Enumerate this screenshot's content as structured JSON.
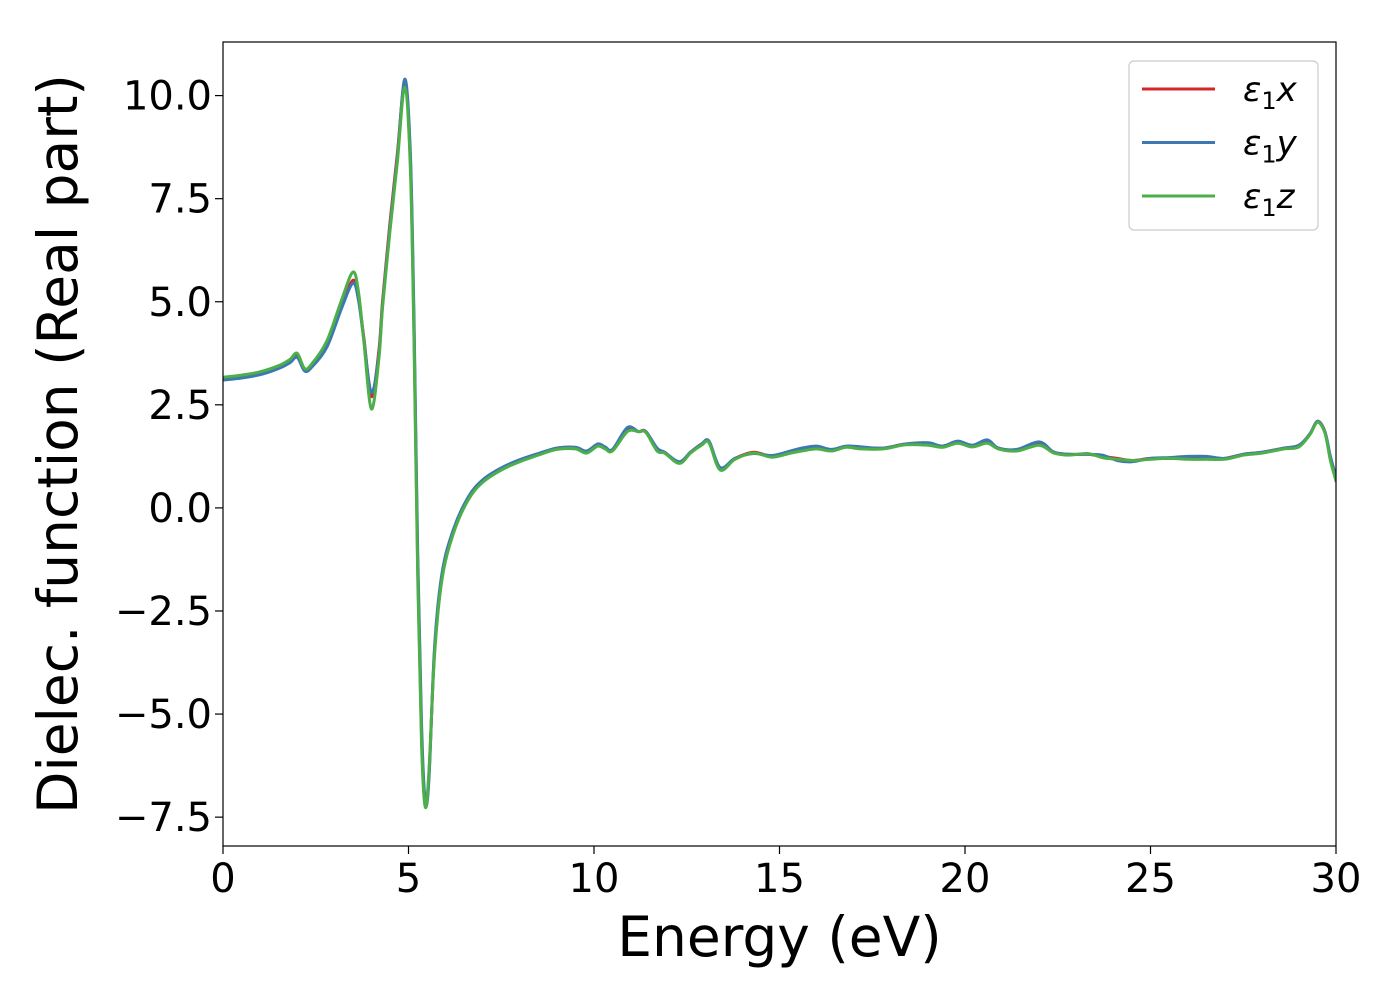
{
  "chart_data": {
    "type": "line",
    "title": "",
    "xlabel": "Energy (eV)",
    "ylabel": "Dielec. function (Real part)",
    "xlim": [
      0,
      30
    ],
    "ylim": [
      -8.2,
      11.3
    ],
    "x_ticks": [
      0,
      5,
      10,
      15,
      20,
      25,
      30
    ],
    "x_tick_labels": [
      "0",
      "5",
      "10",
      "15",
      "20",
      "25",
      "30"
    ],
    "y_ticks": [
      -7.5,
      -5.0,
      -2.5,
      0.0,
      2.5,
      5.0,
      7.5,
      10.0
    ],
    "y_tick_labels": [
      "−7.5",
      "−5.0",
      "−2.5",
      "0.0",
      "2.5",
      "5.0",
      "7.5",
      "10.0"
    ],
    "grid": false,
    "legend_position": "top-right",
    "series": [
      {
        "name": "ε₁x",
        "legend_base": "ε",
        "legend_sub": "1",
        "legend_var": "x",
        "color": "#d62728",
        "x": [
          0,
          0.5,
          1.0,
          1.5,
          1.8,
          2.0,
          2.2,
          2.4,
          2.8,
          3.2,
          3.5,
          3.65,
          3.8,
          4.0,
          4.2,
          4.3,
          4.5,
          4.7,
          4.9,
          5.05,
          5.15,
          5.25,
          5.35,
          5.45,
          5.55,
          5.7,
          5.9,
          6.2,
          6.6,
          7.0,
          7.5,
          8.0,
          8.5,
          9.0,
          9.5,
          9.8,
          10.1,
          10.3,
          10.5,
          10.9,
          11.2,
          11.4,
          11.7,
          11.9,
          12.3,
          12.6,
          12.9,
          13.1,
          13.4,
          13.8,
          14.3,
          14.8,
          15.3,
          15.6,
          16.0,
          16.4,
          16.8,
          17.2,
          17.8,
          18.4,
          19.0,
          19.4,
          19.8,
          20.2,
          20.6,
          20.9,
          21.4,
          22.0,
          22.4,
          22.8,
          23.3,
          23.7,
          24.1,
          24.5,
          25.0,
          25.5,
          26.0,
          26.5,
          27.0,
          27.5,
          28.0,
          28.6,
          29.0,
          29.3,
          29.5,
          29.7,
          29.85,
          30.0
        ],
        "y": [
          3.12,
          3.17,
          3.25,
          3.4,
          3.55,
          3.7,
          3.35,
          3.45,
          3.95,
          4.9,
          5.52,
          5.1,
          4.1,
          2.7,
          3.8,
          5.0,
          6.9,
          8.6,
          10.3,
          8.4,
          4.2,
          -1.5,
          -5.5,
          -7.2,
          -6.5,
          -3.5,
          -1.7,
          -0.6,
          0.2,
          0.65,
          0.95,
          1.15,
          1.3,
          1.45,
          1.45,
          1.35,
          1.52,
          1.45,
          1.4,
          1.9,
          1.85,
          1.85,
          1.4,
          1.35,
          1.1,
          1.35,
          1.55,
          1.6,
          0.95,
          1.2,
          1.35,
          1.25,
          1.35,
          1.4,
          1.45,
          1.4,
          1.48,
          1.45,
          1.45,
          1.55,
          1.55,
          1.5,
          1.6,
          1.5,
          1.6,
          1.45,
          1.4,
          1.55,
          1.35,
          1.3,
          1.3,
          1.25,
          1.2,
          1.15,
          1.2,
          1.2,
          1.22,
          1.2,
          1.2,
          1.3,
          1.35,
          1.45,
          1.5,
          1.8,
          2.1,
          1.85,
          1.2,
          0.7
        ]
      },
      {
        "name": "ε₁y",
        "legend_base": "ε",
        "legend_sub": "1",
        "legend_var": "y",
        "color": "#3e78b2",
        "x": [
          0,
          0.5,
          1.0,
          1.5,
          1.8,
          2.0,
          2.2,
          2.4,
          2.8,
          3.2,
          3.5,
          3.65,
          3.8,
          4.0,
          4.2,
          4.3,
          4.5,
          4.7,
          4.9,
          5.05,
          5.15,
          5.25,
          5.35,
          5.45,
          5.55,
          5.7,
          5.9,
          6.2,
          6.6,
          7.0,
          7.5,
          8.0,
          8.5,
          9.0,
          9.5,
          9.8,
          10.1,
          10.3,
          10.5,
          10.9,
          11.2,
          11.4,
          11.7,
          11.9,
          12.3,
          12.6,
          12.9,
          13.1,
          13.4,
          13.8,
          14.3,
          14.8,
          15.3,
          15.6,
          16.0,
          16.4,
          16.8,
          17.2,
          17.8,
          18.4,
          19.0,
          19.4,
          19.8,
          20.2,
          20.6,
          20.9,
          21.4,
          22.0,
          22.4,
          22.8,
          23.3,
          23.7,
          24.1,
          24.5,
          25.0,
          25.5,
          26.0,
          26.5,
          27.0,
          27.5,
          28.0,
          28.6,
          29.0,
          29.3,
          29.5,
          29.7,
          29.85,
          30.0
        ],
        "y": [
          3.1,
          3.15,
          3.23,
          3.38,
          3.52,
          3.65,
          3.32,
          3.42,
          3.9,
          4.85,
          5.45,
          5.05,
          4.05,
          2.8,
          3.7,
          4.9,
          6.8,
          8.5,
          10.4,
          8.6,
          4.5,
          -1.2,
          -5.2,
          -7.1,
          -6.6,
          -3.4,
          -1.6,
          -0.55,
          0.25,
          0.68,
          0.97,
          1.17,
          1.32,
          1.45,
          1.47,
          1.38,
          1.55,
          1.48,
          1.42,
          1.95,
          1.85,
          1.85,
          1.45,
          1.35,
          1.12,
          1.35,
          1.55,
          1.62,
          0.98,
          1.2,
          1.32,
          1.27,
          1.38,
          1.45,
          1.5,
          1.42,
          1.5,
          1.48,
          1.45,
          1.55,
          1.58,
          1.5,
          1.62,
          1.52,
          1.65,
          1.45,
          1.42,
          1.6,
          1.35,
          1.3,
          1.3,
          1.28,
          1.15,
          1.12,
          1.2,
          1.22,
          1.25,
          1.25,
          1.2,
          1.3,
          1.35,
          1.45,
          1.52,
          1.8,
          2.1,
          1.85,
          1.25,
          0.75
        ]
      },
      {
        "name": "ε₁z",
        "legend_base": "ε",
        "legend_sub": "1",
        "legend_var": "z",
        "color": "#4daf4a",
        "x": [
          0,
          0.5,
          1.0,
          1.5,
          1.8,
          2.0,
          2.2,
          2.4,
          2.8,
          3.2,
          3.5,
          3.65,
          3.8,
          4.0,
          4.2,
          4.3,
          4.5,
          4.7,
          4.9,
          5.05,
          5.15,
          5.25,
          5.35,
          5.45,
          5.55,
          5.7,
          5.9,
          6.2,
          6.6,
          7.0,
          7.5,
          8.0,
          8.5,
          9.0,
          9.5,
          9.8,
          10.1,
          10.3,
          10.5,
          10.9,
          11.2,
          11.4,
          11.7,
          11.9,
          12.3,
          12.6,
          12.9,
          13.1,
          13.4,
          13.8,
          14.3,
          14.8,
          15.3,
          15.6,
          16.0,
          16.4,
          16.8,
          17.2,
          17.8,
          18.4,
          19.0,
          19.4,
          19.8,
          20.2,
          20.6,
          20.9,
          21.4,
          22.0,
          22.4,
          22.8,
          23.3,
          23.7,
          24.1,
          24.5,
          25.0,
          25.5,
          26.0,
          26.5,
          27.0,
          27.5,
          28.0,
          28.6,
          29.0,
          29.3,
          29.5,
          29.7,
          29.85,
          30.0
        ],
        "y": [
          3.17,
          3.22,
          3.3,
          3.45,
          3.6,
          3.75,
          3.38,
          3.5,
          4.05,
          5.05,
          5.72,
          5.25,
          4.0,
          2.4,
          3.6,
          4.85,
          6.7,
          8.4,
          10.2,
          8.2,
          3.9,
          -1.8,
          -5.7,
          -7.25,
          -6.4,
          -3.6,
          -1.75,
          -0.65,
          0.18,
          0.62,
          0.92,
          1.12,
          1.28,
          1.42,
          1.43,
          1.33,
          1.5,
          1.43,
          1.38,
          1.85,
          1.85,
          1.83,
          1.38,
          1.33,
          1.08,
          1.33,
          1.52,
          1.58,
          0.92,
          1.18,
          1.33,
          1.23,
          1.33,
          1.38,
          1.43,
          1.38,
          1.47,
          1.43,
          1.43,
          1.53,
          1.52,
          1.47,
          1.57,
          1.48,
          1.57,
          1.43,
          1.38,
          1.52,
          1.33,
          1.28,
          1.32,
          1.22,
          1.18,
          1.15,
          1.18,
          1.2,
          1.18,
          1.18,
          1.18,
          1.28,
          1.33,
          1.43,
          1.48,
          1.78,
          2.08,
          1.82,
          1.15,
          0.65
        ]
      }
    ]
  }
}
